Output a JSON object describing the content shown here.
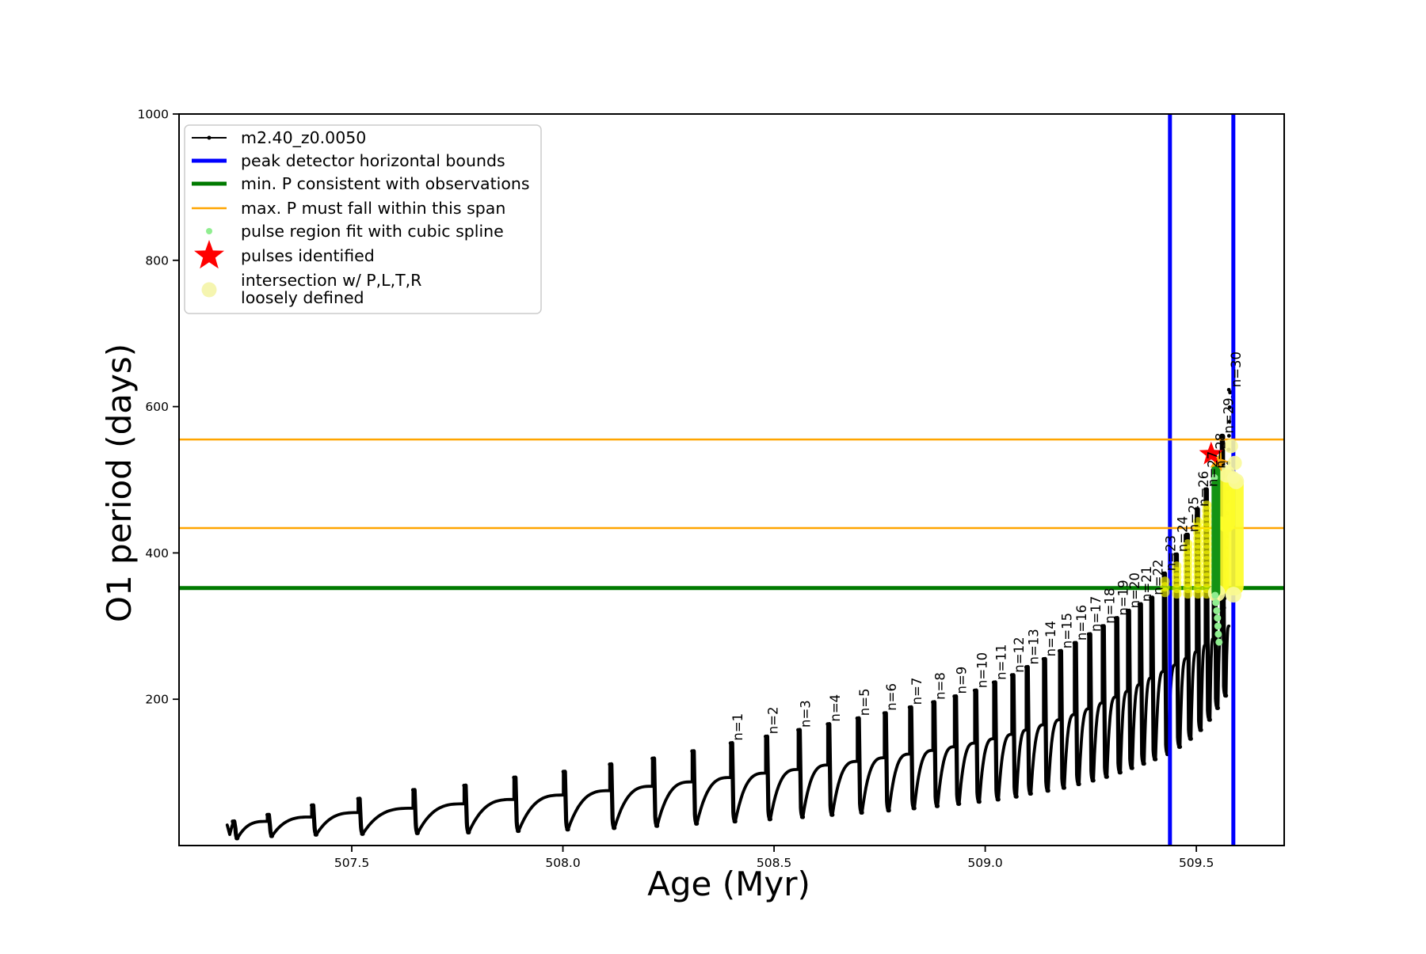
{
  "chart_data": {
    "type": "line",
    "xlabel": "Age (Myr)",
    "ylabel": "O1 period (days)",
    "xlim": [
      507.091,
      509.708
    ],
    "ylim": [
      0,
      1000
    ],
    "xticks": [
      {
        "v": 507.5,
        "label": "507.5"
      },
      {
        "v": 508.0,
        "label": "508.0"
      },
      {
        "v": 508.5,
        "label": "508.5"
      },
      {
        "v": 509.0,
        "label": "509.0"
      },
      {
        "v": 509.5,
        "label": "509.5"
      }
    ],
    "yticks": [
      {
        "v": 200,
        "label": "200"
      },
      {
        "v": 400,
        "label": "400"
      },
      {
        "v": 600,
        "label": "600"
      },
      {
        "v": 800,
        "label": "800"
      },
      {
        "v": 1000,
        "label": "1000"
      }
    ],
    "series_label": "m2.40_z0.0050",
    "intro": [
      [
        507.205,
        28
      ],
      [
        507.211,
        15
      ],
      [
        507.216,
        26
      ]
    ],
    "pulses": [
      {
        "age": 507.218,
        "peak": 33,
        "plateau": 29,
        "dip": 10,
        "label": null
      },
      {
        "age": 507.3,
        "peak": 42,
        "plateau": 33,
        "dip": 13,
        "label": null
      },
      {
        "age": 507.405,
        "peak": 55,
        "plateau": 39,
        "dip": 15,
        "label": null
      },
      {
        "age": 507.515,
        "peak": 64,
        "plateau": 45,
        "dip": 16,
        "label": null
      },
      {
        "age": 507.645,
        "peak": 76,
        "plateau": 51,
        "dip": 17,
        "label": null
      },
      {
        "age": 507.766,
        "peak": 82,
        "plateau": 57,
        "dip": 18,
        "label": null
      },
      {
        "age": 507.884,
        "peak": 93,
        "plateau": 63,
        "dip": 20,
        "label": null
      },
      {
        "age": 508.001,
        "peak": 101,
        "plateau": 69,
        "dip": 22,
        "label": null
      },
      {
        "age": 508.111,
        "peak": 111,
        "plateau": 75,
        "dip": 24,
        "label": null
      },
      {
        "age": 508.212,
        "peak": 119,
        "plateau": 81,
        "dip": 27,
        "label": null
      },
      {
        "age": 508.306,
        "peak": 129,
        "plateau": 87,
        "dip": 30,
        "label": null
      },
      {
        "age": 508.397,
        "peak": 140,
        "plateau": 93,
        "dip": 33,
        "label": "n=1"
      },
      {
        "age": 508.48,
        "peak": 149,
        "plateau": 99,
        "dip": 36,
        "label": "n=2"
      },
      {
        "age": 508.557,
        "peak": 158,
        "plateau": 104,
        "dip": 39,
        "label": "n=3"
      },
      {
        "age": 508.627,
        "peak": 166,
        "plateau": 110,
        "dip": 42,
        "label": "n=4"
      },
      {
        "age": 508.697,
        "peak": 174,
        "plateau": 115,
        "dip": 45,
        "label": "n=5"
      },
      {
        "age": 508.761,
        "peak": 181,
        "plateau": 120,
        "dip": 48,
        "label": "n=6"
      },
      {
        "age": 508.821,
        "peak": 189,
        "plateau": 125,
        "dip": 51,
        "label": "n=7"
      },
      {
        "age": 508.876,
        "peak": 196,
        "plateau": 130,
        "dip": 54,
        "label": "n=8"
      },
      {
        "age": 508.927,
        "peak": 204,
        "plateau": 135,
        "dip": 57,
        "label": "n=9"
      },
      {
        "age": 508.975,
        "peak": 212,
        "plateau": 140,
        "dip": 60,
        "label": "n=10"
      },
      {
        "age": 509.02,
        "peak": 223,
        "plateau": 146,
        "dip": 63,
        "label": "n=11"
      },
      {
        "age": 509.063,
        "peak": 233,
        "plateau": 152,
        "dip": 67,
        "label": "n=12"
      },
      {
        "age": 509.097,
        "peak": 244,
        "plateau": 158,
        "dip": 71,
        "label": "n=13"
      },
      {
        "age": 509.138,
        "peak": 255,
        "plateau": 165,
        "dip": 75,
        "label": "n=14"
      },
      {
        "age": 509.176,
        "peak": 266,
        "plateau": 172,
        "dip": 79,
        "label": "n=15"
      },
      {
        "age": 509.211,
        "peak": 277,
        "plateau": 179,
        "dip": 84,
        "label": "n=16"
      },
      {
        "age": 509.245,
        "peak": 289,
        "plateau": 187,
        "dip": 89,
        "label": "n=17"
      },
      {
        "age": 509.277,
        "peak": 300,
        "plateau": 195,
        "dip": 94,
        "label": "n=18"
      },
      {
        "age": 509.309,
        "peak": 311,
        "plateau": 203,
        "dip": 100,
        "label": "n=19"
      },
      {
        "age": 509.337,
        "peak": 321,
        "plateau": 211,
        "dip": 106,
        "label": "n=20"
      },
      {
        "age": 509.365,
        "peak": 330,
        "plateau": 220,
        "dip": 112,
        "label": "n=21"
      },
      {
        "age": 509.392,
        "peak": 339,
        "plateau": 229,
        "dip": 118,
        "label": "n=22"
      },
      {
        "age": 509.422,
        "peak": 372,
        "plateau": 238,
        "dip": 125,
        "label": "n=23"
      },
      {
        "age": 509.45,
        "peak": 398,
        "plateau": 247,
        "dip": 135,
        "label": "n=24"
      },
      {
        "age": 509.476,
        "peak": 425,
        "plateau": 256,
        "dip": 146,
        "label": "n=25"
      },
      {
        "age": 509.5,
        "peak": 460,
        "plateau": 265,
        "dip": 158,
        "label": "n=26"
      },
      {
        "age": 509.521,
        "peak": 487,
        "plateau": 274,
        "dip": 172,
        "label": "n=27"
      },
      {
        "age": 509.54,
        "peak": 512,
        "plateau": 283,
        "dip": 188,
        "label": "n=28"
      },
      {
        "age": 509.559,
        "peak": 560,
        "plateau": 292,
        "dip": 205,
        "label": "n=29"
      },
      {
        "age": 509.577,
        "peak": 623,
        "plateau": 300,
        "dip": null,
        "label": "n=30"
      }
    ],
    "vlines": {
      "color": "#0000ff",
      "ages": [
        509.4375,
        509.5876
      ]
    },
    "hlines": [
      {
        "P": 555,
        "color": "#ffa500",
        "w": 2.5
      },
      {
        "P": 434,
        "color": "#ffa500",
        "w": 2.5
      },
      {
        "P": 352,
        "color": "#007a00",
        "w": 5
      }
    ],
    "star": {
      "age": 509.535,
      "P": 535,
      "color": "#ff0000"
    },
    "orange_dot": {
      "age": 509.552,
      "P": 525,
      "color": "#ffa500"
    },
    "pale_dots": [
      {
        "age": 509.582,
        "P": 546,
        "r": 9
      },
      {
        "age": 509.591,
        "P": 523,
        "r": 9
      },
      {
        "age": 509.588,
        "P": 503,
        "r": 8
      },
      {
        "age": 509.548,
        "P": 345,
        "r": 11
      },
      {
        "age": 509.588,
        "P": 343,
        "r": 10
      },
      {
        "age": 509.572,
        "P": 508,
        "r": 11
      },
      {
        "age": 509.594,
        "P": 498,
        "r": 10
      }
    ],
    "green_bar": {
      "age": 509.5463,
      "P0": 515,
      "P1": 346,
      "color": "#149314"
    },
    "lightgreen_dots": [
      {
        "age": 509.5426,
        "P": 503
      },
      {
        "age": 509.5445,
        "P": 342
      },
      {
        "age": 509.5463,
        "P": 332
      },
      {
        "age": 509.5482,
        "P": 321
      },
      {
        "age": 509.5501,
        "P": 311
      },
      {
        "age": 509.551,
        "P": 300
      },
      {
        "age": 509.552,
        "P": 289
      },
      {
        "age": 509.5538,
        "P": 278
      }
    ],
    "yellow_streaks": [
      {
        "age": 509.422,
        "fromP": 346,
        "toP": 366
      },
      {
        "age": 509.45,
        "fromP": 344,
        "toP": 388
      },
      {
        "age": 509.476,
        "fromP": 344,
        "toP": 415
      },
      {
        "age": 509.5,
        "fromP": 344,
        "toP": 448
      },
      {
        "age": 509.521,
        "fromP": 344,
        "toP": 470
      }
    ],
    "yellow_blobs": [
      {
        "a0": 509.551,
        "a1": 509.592,
        "p0": 515,
        "p1": 428
      },
      {
        "a0": 509.563,
        "a1": 509.612,
        "p0": 506,
        "p1": 342
      },
      {
        "a0": 509.536,
        "a1": 509.577,
        "p0": 450,
        "p1": 342
      }
    ]
  },
  "legend": {
    "items": [
      {
        "label": "m2.40_z0.0050",
        "type": "line-dot",
        "color": "#000000"
      },
      {
        "label": "peak detector horizontal bounds",
        "type": "line",
        "color": "#0000ff"
      },
      {
        "label": "min. P consistent with observations",
        "type": "line",
        "color": "#007a00"
      },
      {
        "label": "max. P must fall within this span",
        "type": "line",
        "color": "#ffa500"
      },
      {
        "label": "pulse region fit with cubic spline",
        "type": "dot",
        "color": "#90ee90"
      },
      {
        "label": "pulses identified",
        "type": "star",
        "color": "#ff0000"
      },
      {
        "label": "intersection w/ P,L,T,R",
        "label2": "loosely defined",
        "type": "bigdot",
        "color": "#f5f5b0"
      }
    ]
  }
}
